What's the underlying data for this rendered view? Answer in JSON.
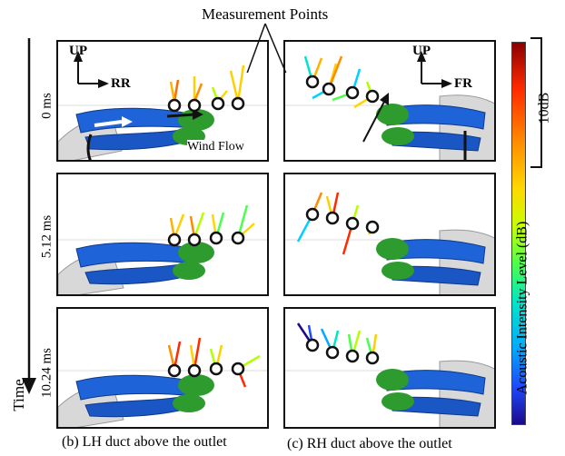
{
  "annotations": {
    "measurement_points": "Measurement Points",
    "wind_flow": "Wind Flow"
  },
  "axes": {
    "up": "UP",
    "left_panel_direction": "RR",
    "right_panel_direction": "FR"
  },
  "time_axis": {
    "label": "Time",
    "rows": [
      "0 ms",
      "5.12 ms",
      "10.24 ms"
    ]
  },
  "captions": {
    "left": "(b) LH duct above the outlet",
    "right": "(c) RH duct above the outlet"
  },
  "colorbar": {
    "label": "Acoustic Intensity Level (dB)",
    "scale_label": "10dB",
    "colors": [
      "#8b0000",
      "#ff2a00",
      "#ff8c00",
      "#ffd700",
      "#c8ff00",
      "#4cff4c",
      "#00e5c8",
      "#00aaff",
      "#1e4bff",
      "#1a0a8c"
    ]
  },
  "palette": {
    "duct_blue": "#1f63d8",
    "duct_green": "#2e9b2e",
    "robot_gray": "#cfcfcf"
  }
}
